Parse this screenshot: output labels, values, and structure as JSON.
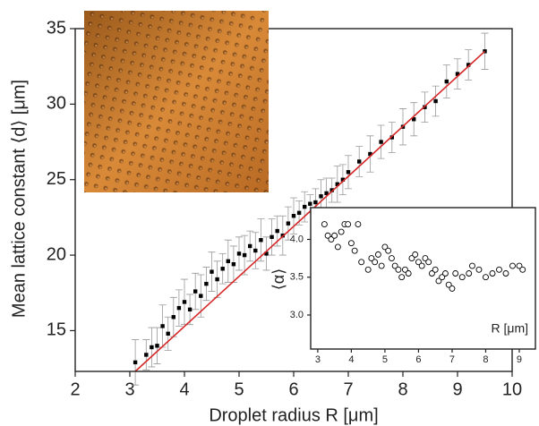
{
  "chart_data": [
    {
      "type": "scatter",
      "xlabel": "Droplet radius R [μm]",
      "ylabel": "Mean lattice constant ⟨d⟩ [μm]",
      "x": [
        3.1,
        3.3,
        3.4,
        3.5,
        3.6,
        3.7,
        3.8,
        3.9,
        4.0,
        4.1,
        4.2,
        4.3,
        4.4,
        4.5,
        4.6,
        4.7,
        4.8,
        4.9,
        5.0,
        5.1,
        5.2,
        5.3,
        5.4,
        5.5,
        5.6,
        5.7,
        5.8,
        5.9,
        6.0,
        6.1,
        6.2,
        6.3,
        6.4,
        6.5,
        6.6,
        6.7,
        6.8,
        6.9,
        7.0,
        7.2,
        7.4,
        7.6,
        7.8,
        8.0,
        8.2,
        8.4,
        8.6,
        8.8,
        9.0,
        9.2,
        9.5
      ],
      "values": [
        12.9,
        13.4,
        13.9,
        14.0,
        15.3,
        14.8,
        15.9,
        16.5,
        16.9,
        16.4,
        17.6,
        17.3,
        18.1,
        18.9,
        18.4,
        19.1,
        19.6,
        19.4,
        20.1,
        20.0,
        20.6,
        20.3,
        21.0,
        20.1,
        21.2,
        21.6,
        21.3,
        22.1,
        22.6,
        22.8,
        23.2,
        23.4,
        23.5,
        23.9,
        24.1,
        24.3,
        24.7,
        25.0,
        25.5,
        26.2,
        26.7,
        27.5,
        27.8,
        28.5,
        29.0,
        29.8,
        30.2,
        31.5,
        32.0,
        32.6,
        33.5
      ],
      "errors": [
        1.5,
        1.0,
        1.3,
        1.2,
        1.4,
        1.1,
        1.3,
        1.2,
        1.5,
        1.0,
        1.2,
        1.4,
        1.1,
        1.3,
        1.2,
        1.0,
        1.4,
        1.2,
        1.1,
        1.3,
        1.0,
        1.2,
        1.4,
        1.1,
        1.2,
        1.0,
        1.3,
        1.1,
        1.2,
        0.8,
        1.0,
        0.6,
        0.9,
        1.1,
        1.0,
        0.8,
        1.2,
        1.0,
        1.1,
        1.0,
        1.2,
        1.1,
        1.0,
        1.2,
        1.1,
        1.0,
        1.0,
        1.1,
        1.0,
        1.0,
        1.2
      ],
      "color": "#000000",
      "fit": {
        "x": [
          3.1,
          9.5
        ],
        "y": [
          12.3,
          33.5
        ],
        "color": "#d62728"
      },
      "xlim": [
        2,
        10
      ],
      "xticks": [
        2,
        3,
        4,
        5,
        6,
        7,
        8,
        9,
        10
      ],
      "ylim": [
        12.3,
        35
      ],
      "yticks": [
        15,
        20,
        25,
        30,
        35
      ]
    },
    {
      "type": "scatter",
      "xlabel": "R [μm]",
      "ylabel": "⟨α⟩",
      "x": [
        3.2,
        3.3,
        3.4,
        3.5,
        3.6,
        3.7,
        3.8,
        3.9,
        4.0,
        4.1,
        4.2,
        4.3,
        4.5,
        4.6,
        4.7,
        4.8,
        4.9,
        5.0,
        5.1,
        5.2,
        5.3,
        5.4,
        5.5,
        5.6,
        5.7,
        5.8,
        5.9,
        6.0,
        6.1,
        6.2,
        6.3,
        6.4,
        6.5,
        6.6,
        6.7,
        6.8,
        6.9,
        7.0,
        7.1,
        7.3,
        7.5,
        7.6,
        7.8,
        8.0,
        8.2,
        8.4,
        8.6,
        8.8,
        9.0,
        9.1
      ],
      "values": [
        4.2,
        4.05,
        4.0,
        4.05,
        3.9,
        4.1,
        4.2,
        4.2,
        3.95,
        3.85,
        4.2,
        3.7,
        3.6,
        3.75,
        3.7,
        3.8,
        3.65,
        3.9,
        3.85,
        3.75,
        3.65,
        3.6,
        3.5,
        3.6,
        3.55,
        3.75,
        3.8,
        3.7,
        3.65,
        3.75,
        3.7,
        3.55,
        3.6,
        3.45,
        3.5,
        3.55,
        3.4,
        3.35,
        3.55,
        3.5,
        3.55,
        3.65,
        3.6,
        3.5,
        3.55,
        3.6,
        3.55,
        3.65,
        3.65,
        3.6
      ],
      "color": "#000000",
      "xlim": [
        2.79,
        9.48
      ],
      "xticks": [
        3,
        4,
        5,
        6,
        7,
        8,
        9
      ],
      "ylim": [
        2.55,
        4.42
      ],
      "yticks": [
        {
          "value": 3,
          "label": "3.0"
        },
        3.5,
        {
          "value": 4,
          "label": "4.0"
        }
      ]
    }
  ]
}
